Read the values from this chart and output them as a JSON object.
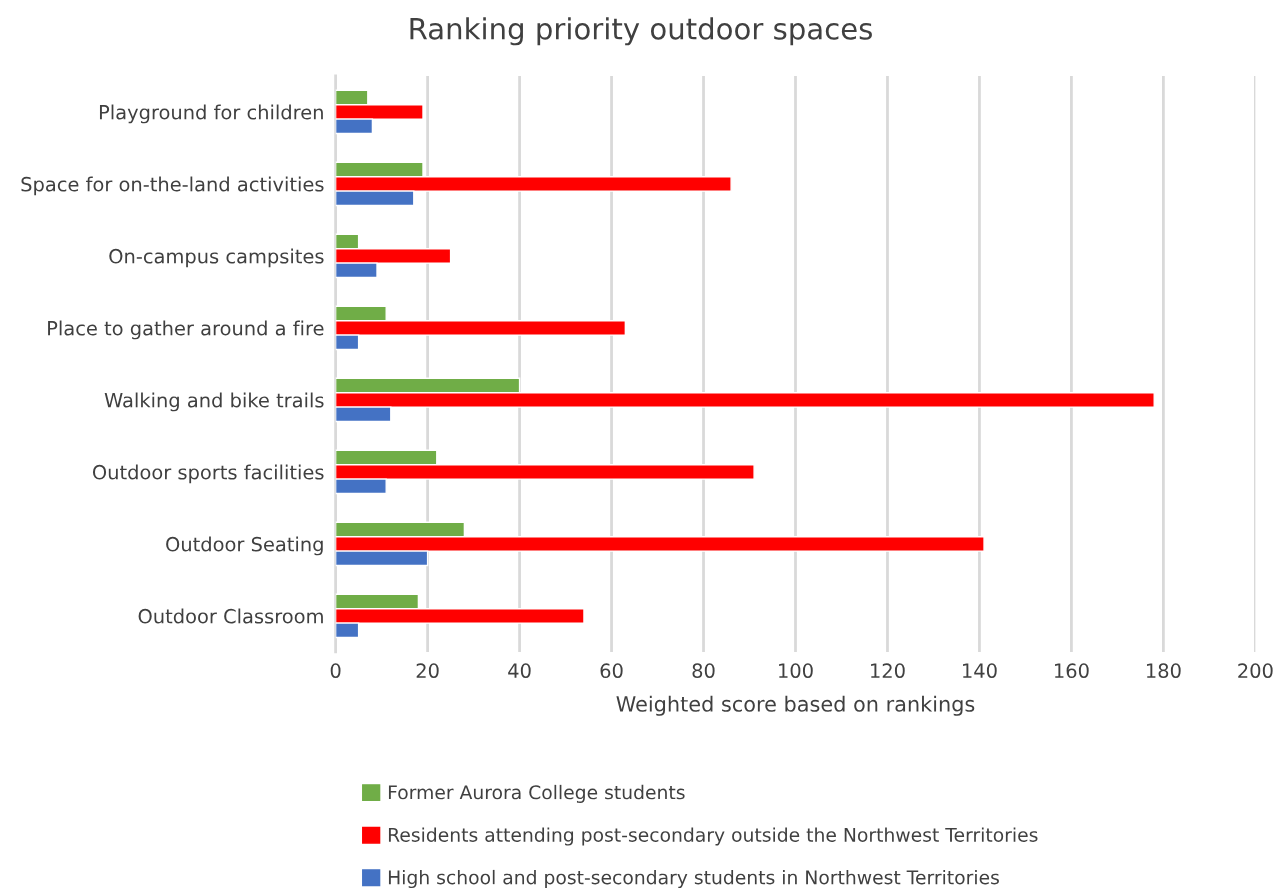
{
  "chart_data": {
    "type": "bar",
    "orientation": "horizontal",
    "title": "Ranking priority outdoor spaces",
    "xlabel": "Weighted score based on rankings",
    "categories": [
      "Playground for children",
      "Space for on-the-land activities",
      "On-campus campsites",
      "Place to gather around a fire",
      "Walking and bike trails",
      "Outdoor sports facilities",
      "Outdoor Seating",
      "Outdoor Classroom"
    ],
    "series": [
      {
        "name": "Former Aurora College students",
        "color": "#70ad47",
        "values": [
          7,
          19,
          5,
          11,
          40,
          22,
          28,
          18
        ]
      },
      {
        "name": "Residents attending post-secondary outside the Northwest Territories",
        "color": "#ff0000",
        "values": [
          19,
          86,
          25,
          63,
          178,
          91,
          141,
          54
        ]
      },
      {
        "name": "High school and post-secondary students in Northwest Territories",
        "color": "#4472c4",
        "values": [
          8,
          17,
          9,
          5,
          12,
          11,
          20,
          5
        ]
      }
    ],
    "xlim": [
      0,
      200
    ],
    "xticks": [
      0,
      20,
      40,
      60,
      80,
      100,
      120,
      140,
      160,
      180,
      200
    ],
    "grid": "x",
    "legend": "bottom"
  }
}
